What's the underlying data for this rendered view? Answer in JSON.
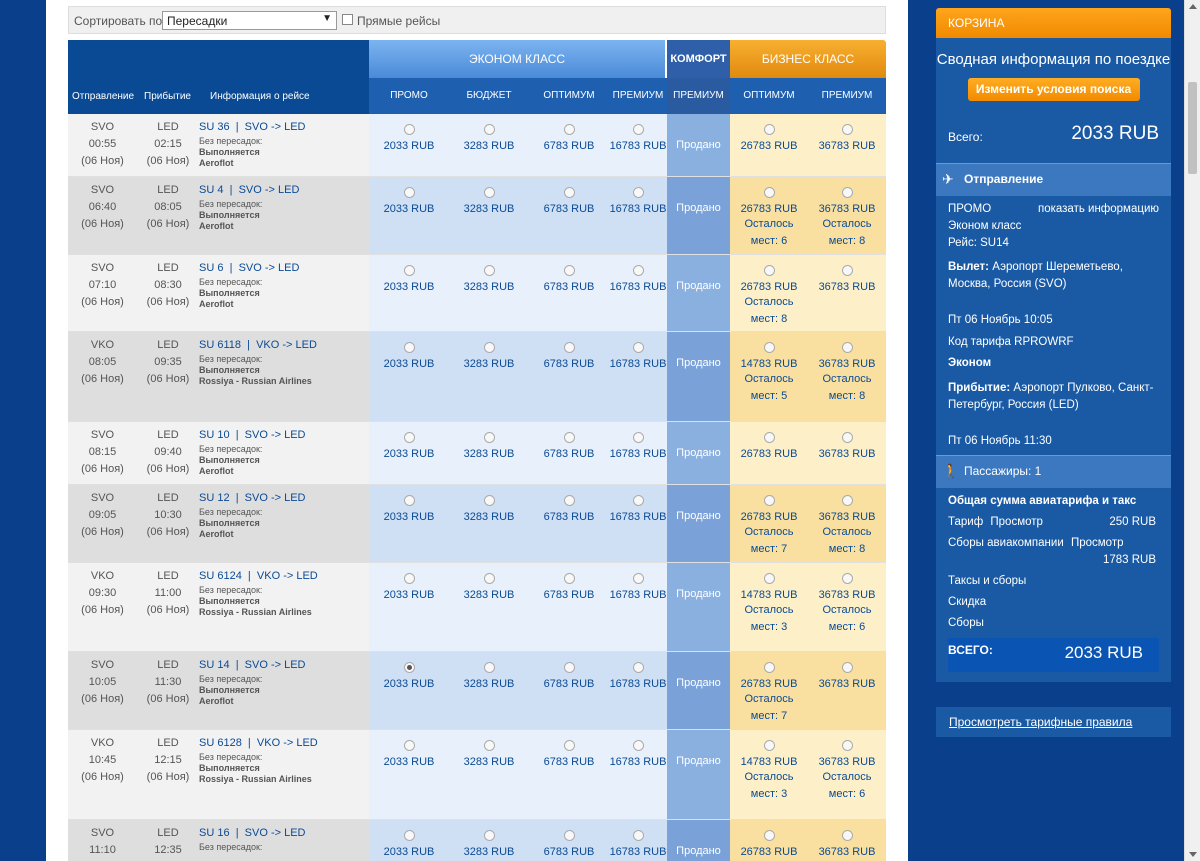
{
  "sortbar": {
    "label": "Сортировать по",
    "selected": "Пересадки",
    "direct_label": "Прямые рейсы"
  },
  "header": {
    "departure": "Отправление",
    "arrival": "Прибытие",
    "info": "Информация о рейсе",
    "groups": {
      "economy": "ЭКОНОМ КЛАСС",
      "comfort": "КОМФОРТ",
      "business": "БИЗНЕС КЛАСС"
    },
    "fares": [
      "ПРОМО",
      "БЮДЖЕТ",
      "ОПТИМУМ",
      "ПРЕМИУМ",
      "ПРЕМИУМ",
      "ОПТИМУМ",
      "ПРЕМИУМ"
    ]
  },
  "flights": [
    {
      "from": "SVO",
      "dep_time": "00:55",
      "dep_date": "(06 Ноя)",
      "to": "LED",
      "arr_time": "02:15",
      "arr_date": "(06 Ноя)",
      "flight_no": "SU 36",
      "route": "SVO -> LED",
      "transfers": "Без пересадок:",
      "status": "Выполняется",
      "airline": "Aeroflot",
      "prices": [
        "2033 RUB",
        "3283 RUB",
        "6783 RUB",
        "16783 RUB",
        "Продано",
        "26783 RUB",
        "36783 RUB"
      ],
      "seats": [
        "",
        ""
      ],
      "selected": false
    },
    {
      "from": "SVO",
      "dep_time": "06:40",
      "dep_date": "(06 Ноя)",
      "to": "LED",
      "arr_time": "08:05",
      "arr_date": "(06 Ноя)",
      "flight_no": "SU 4",
      "route": "SVO -> LED",
      "transfers": "Без пересадок:",
      "status": "Выполняется",
      "airline": "Aeroflot",
      "prices": [
        "2033 RUB",
        "3283 RUB",
        "6783 RUB",
        "16783 RUB",
        "Продано",
        "26783 RUB",
        "36783 RUB"
      ],
      "seats": [
        "Осталось мест: 6",
        "Осталось мест: 8"
      ],
      "selected": false
    },
    {
      "from": "SVO",
      "dep_time": "07:10",
      "dep_date": "(06 Ноя)",
      "to": "LED",
      "arr_time": "08:30",
      "arr_date": "(06 Ноя)",
      "flight_no": "SU 6",
      "route": "SVO -> LED",
      "transfers": "Без пересадок:",
      "status": "Выполняется",
      "airline": "Aeroflot",
      "prices": [
        "2033 RUB",
        "3283 RUB",
        "6783 RUB",
        "16783 RUB",
        "Продано",
        "26783 RUB",
        "36783 RUB"
      ],
      "seats": [
        "Осталось мест: 8",
        ""
      ],
      "selected": false
    },
    {
      "from": "VKO",
      "dep_time": "08:05",
      "dep_date": "(06 Ноя)",
      "to": "LED",
      "arr_time": "09:35",
      "arr_date": "(06 Ноя)",
      "flight_no": "SU 6118",
      "route": "VKO -> LED",
      "transfers": "Без пересадок:",
      "status": "Выполняется",
      "airline": "Rossiya - Russian Airlines",
      "prices": [
        "2033 RUB",
        "3283 RUB",
        "6783 RUB",
        "16783 RUB",
        "Продано",
        "14783 RUB",
        "36783 RUB"
      ],
      "seats": [
        "Осталось мест: 5",
        "Осталось мест: 8"
      ],
      "selected": false
    },
    {
      "from": "SVO",
      "dep_time": "08:15",
      "dep_date": "(06 Ноя)",
      "to": "LED",
      "arr_time": "09:40",
      "arr_date": "(06 Ноя)",
      "flight_no": "SU 10",
      "route": "SVO -> LED",
      "transfers": "Без пересадок:",
      "status": "Выполняется",
      "airline": "Aeroflot",
      "prices": [
        "2033 RUB",
        "3283 RUB",
        "6783 RUB",
        "16783 RUB",
        "Продано",
        "26783 RUB",
        "36783 RUB"
      ],
      "seats": [
        "",
        ""
      ],
      "selected": false
    },
    {
      "from": "SVO",
      "dep_time": "09:05",
      "dep_date": "(06 Ноя)",
      "to": "LED",
      "arr_time": "10:30",
      "arr_date": "(06 Ноя)",
      "flight_no": "SU 12",
      "route": "SVO -> LED",
      "transfers": "Без пересадок:",
      "status": "Выполняется",
      "airline": "Aeroflot",
      "prices": [
        "2033 RUB",
        "3283 RUB",
        "6783 RUB",
        "16783 RUB",
        "Продано",
        "26783 RUB",
        "36783 RUB"
      ],
      "seats": [
        "Осталось мест: 7",
        "Осталось мест: 8"
      ],
      "selected": false
    },
    {
      "from": "VKO",
      "dep_time": "09:30",
      "dep_date": "(06 Ноя)",
      "to": "LED",
      "arr_time": "11:00",
      "arr_date": "(06 Ноя)",
      "flight_no": "SU 6124",
      "route": "VKO -> LED",
      "transfers": "Без пересадок:",
      "status": "Выполняется",
      "airline": "Rossiya - Russian Airlines",
      "prices": [
        "2033 RUB",
        "3283 RUB",
        "6783 RUB",
        "16783 RUB",
        "Продано",
        "14783 RUB",
        "36783 RUB"
      ],
      "seats": [
        "Осталось мест: 3",
        "Осталось мест: 6"
      ],
      "selected": false
    },
    {
      "from": "SVO",
      "dep_time": "10:05",
      "dep_date": "(06 Ноя)",
      "to": "LED",
      "arr_time": "11:30",
      "arr_date": "(06 Ноя)",
      "flight_no": "SU 14",
      "route": "SVO -> LED",
      "transfers": "Без пересадок:",
      "status": "Выполняется",
      "airline": "Aeroflot",
      "prices": [
        "2033 RUB",
        "3283 RUB",
        "6783 RUB",
        "16783 RUB",
        "Продано",
        "26783 RUB",
        "36783 RUB"
      ],
      "seats": [
        "Осталось мест: 7",
        ""
      ],
      "selected": true
    },
    {
      "from": "VKO",
      "dep_time": "10:45",
      "dep_date": "(06 Ноя)",
      "to": "LED",
      "arr_time": "12:15",
      "arr_date": "(06 Ноя)",
      "flight_no": "SU 6128",
      "route": "VKO -> LED",
      "transfers": "Без пересадок:",
      "status": "Выполняется",
      "airline": "Rossiya - Russian Airlines",
      "prices": [
        "2033 RUB",
        "3283 RUB",
        "6783 RUB",
        "16783 RUB",
        "Продано",
        "14783 RUB",
        "36783 RUB"
      ],
      "seats": [
        "Осталось мест: 3",
        "Осталось мест: 6"
      ],
      "selected": false
    },
    {
      "from": "SVO",
      "dep_time": "11:10",
      "dep_date": "",
      "to": "LED",
      "arr_time": "12:35",
      "arr_date": "",
      "flight_no": "SU 16",
      "route": "SVO -> LED",
      "transfers": "Без пересадок:",
      "status": "",
      "airline": "",
      "prices": [
        "2033 RUB",
        "3283 RUB",
        "6783 RUB",
        "16783 RUB",
        "Продано",
        "26783 RUB",
        "36783 RUB"
      ],
      "seats": [
        "",
        ""
      ],
      "selected": false
    }
  ],
  "cart": {
    "title": "КОРЗИНА",
    "subtitle": "Сводная информация по поездке",
    "change_button": "Изменить условия поиска",
    "total_label": "Всего:",
    "total_value": "2033 RUB",
    "departure_section": "Отправление",
    "fare_name": "ПРОМО",
    "show_info": "показать информацию",
    "cabin": "Эконом класс",
    "flight": "Рейс: SU14",
    "dep_label": "Вылет:",
    "dep_airport": "Аэропорт Шереметьево, Москва, Россия (SVO)",
    "dep_datetime": "Пт 06 Ноябрь 10:05",
    "fare_code": "Код тарифа RPROWRF",
    "fare_class": "Эконом",
    "arr_label": "Прибытие:",
    "arr_airport": "Аэропорт Пулково, Санкт-Петербург, Россия (LED)",
    "arr_datetime": "Пт 06 Ноябрь 11:30",
    "passengers": "Пассажиры: 1",
    "sum_title": "Общая сумма авиатарифа и такс",
    "tariff_label": "Тариф",
    "view": "Просмотр",
    "tariff_value": "250 RUB",
    "fees_label": "Сборы авиакомпании",
    "fees_value": "1783 RUB",
    "taxes_label": "Таксы и сборы",
    "discount_label": "Скидка",
    "charges_label": "Сборы",
    "grand_label": "ВСЕГО:",
    "grand_value": "2033 RUB",
    "rules_link": "Просмотреть тарифные правила"
  },
  "colors": {
    "brand_blue": "#0a3f8c",
    "economy_header": "#5a9ae0",
    "comfort": "#2f5fa8",
    "business": "#f0a020"
  }
}
